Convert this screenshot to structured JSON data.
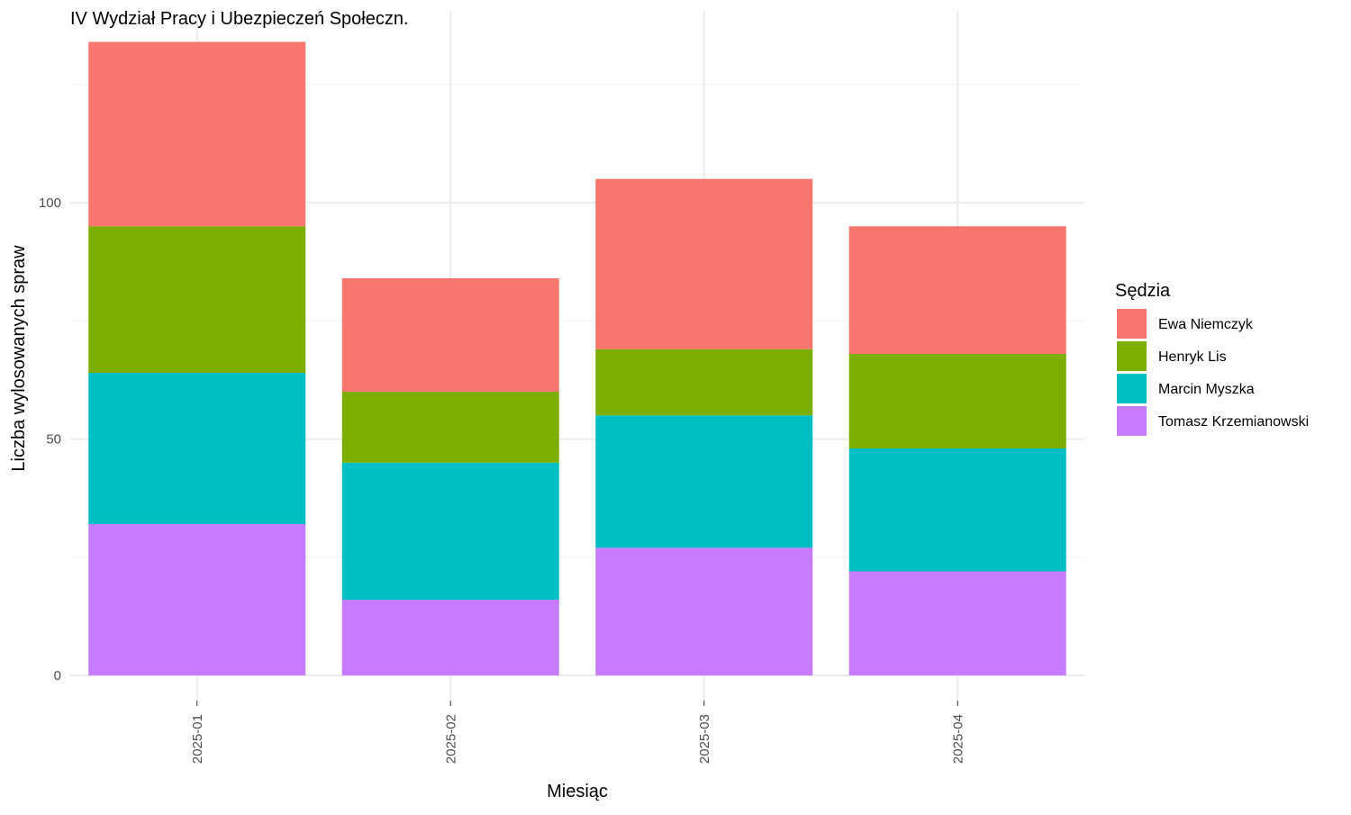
{
  "chart_data": {
    "type": "bar",
    "stacked": true,
    "title": "IV Wydział Pracy i Ubezpieczeń Społeczn.",
    "xlabel": "Miesiąc",
    "ylabel": "Liczba wylosowanych spraw",
    "categories": [
      "2025-01",
      "2025-02",
      "2025-03",
      "2025-04"
    ],
    "ylim": [
      0,
      134
    ],
    "yticks": [
      0,
      50,
      100
    ],
    "grid": true,
    "legend": {
      "title": "Sędzia",
      "position": "right"
    },
    "series": [
      {
        "name": "Tomasz Krzemianowski",
        "color": "#C77CFF",
        "values": [
          32,
          16,
          27,
          22
        ]
      },
      {
        "name": "Marcin Myszka",
        "color": "#00BFC4",
        "values": [
          32,
          29,
          28,
          26
        ]
      },
      {
        "name": "Henryk Lis",
        "color": "#7CAE00",
        "values": [
          31,
          15,
          14,
          20
        ]
      },
      {
        "name": "Ewa Niemczyk",
        "color": "#F8766D",
        "values": [
          39,
          24,
          36,
          27
        ]
      }
    ],
    "legend_order": [
      "Ewa Niemczyk",
      "Henryk Lis",
      "Marcin Myszka",
      "Tomasz Krzemianowski"
    ]
  }
}
